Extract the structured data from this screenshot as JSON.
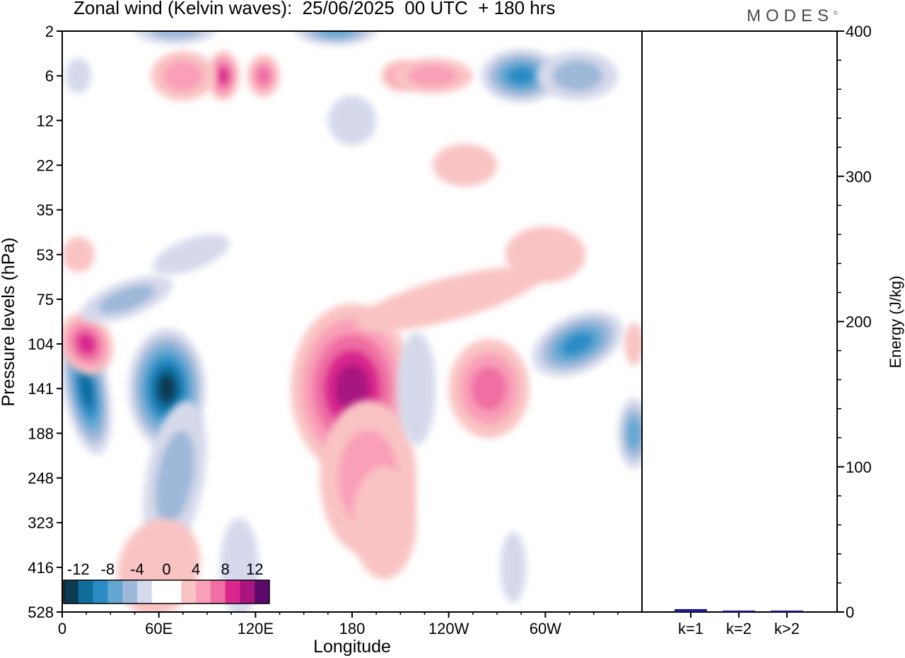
{
  "title": "Zonal wind (Kelvin waves):  25/06/2025  00 UTC  + 180 hrs",
  "brand": "MODES",
  "brand_mark": "©",
  "chart_data": [
    {
      "type": "heatmap",
      "title": "Zonal wind (Kelvin waves):  25/06/2025  00 UTC  + 180 hrs",
      "xlabel": "Longitude",
      "ylabel": "Pressure levels (hPa)",
      "x_ticks": [
        "0",
        "60E",
        "120E",
        "180",
        "120W",
        "60W"
      ],
      "x_tick_degrees": [
        0,
        60,
        120,
        180,
        240,
        300
      ],
      "xlim": [
        0,
        360
      ],
      "y_ticks": [
        "2",
        "6",
        "12",
        "22",
        "35",
        "53",
        "75",
        "104",
        "141",
        "188",
        "248",
        "323",
        "416",
        "528"
      ],
      "colorbar": {
        "labels": [
          "-12",
          "-8",
          "-4",
          "0",
          "4",
          "8",
          "12"
        ],
        "label_values": [
          -12,
          -8,
          -4,
          0,
          4,
          8,
          12
        ],
        "colors": [
          "#0c3b52",
          "#0f6d9e",
          "#2b8cc4",
          "#62a7d2",
          "#9eb8d9",
          "#d5d9eb",
          "#ffffff",
          "#ffffff",
          "#f9c3c3",
          "#f99fb8",
          "#ef6ea3",
          "#d9278e",
          "#a8157f",
          "#5c0a6c"
        ]
      },
      "features": [
        {
          "lon": 65,
          "level": "141",
          "value": -14
        },
        {
          "lon": 15,
          "level": "141",
          "value": -13
        },
        {
          "lon": 180,
          "level": "141",
          "value": 11
        },
        {
          "lon": 15,
          "level": "104",
          "value": 8
        },
        {
          "lon": 100,
          "level": "6",
          "value": 9
        },
        {
          "lon": 285,
          "level": "6",
          "value": -10
        },
        {
          "lon": 320,
          "level": "104",
          "value": -9
        },
        {
          "lon": 240,
          "level": "75",
          "value": 6
        },
        {
          "lon": 265,
          "level": "141",
          "value": 6
        }
      ]
    },
    {
      "type": "bar",
      "ylabel": "Energy (J/kg)",
      "categories": [
        "k=1",
        "k=2",
        "k>2"
      ],
      "values": [
        2,
        1,
        1
      ],
      "ylim": [
        0,
        400
      ],
      "y_ticks": [
        0,
        100,
        200,
        300,
        400
      ],
      "bar_color": "#1a1a8c"
    }
  ]
}
